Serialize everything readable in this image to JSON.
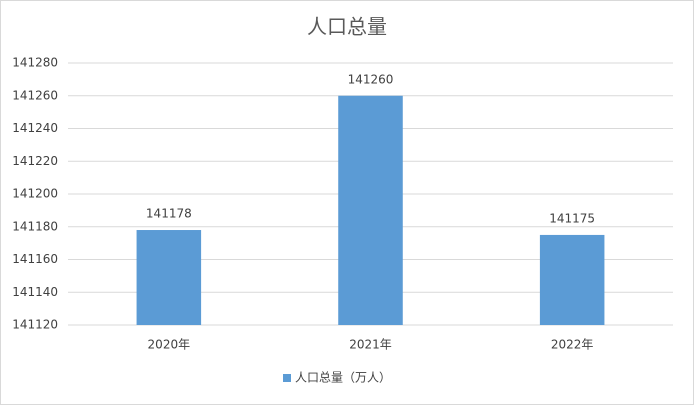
{
  "chart_data": {
    "type": "bar",
    "title": "人口总量",
    "categories": [
      "2020年",
      "2021年",
      "2022年"
    ],
    "series": [
      {
        "name": "人口总量（万人）",
        "color": "#5b9bd5",
        "values": [
          141178,
          141260,
          141175
        ]
      }
    ],
    "ylim": [
      141120,
      141280
    ],
    "yticks": [
      141120,
      141140,
      141160,
      141180,
      141200,
      141220,
      141240,
      141260,
      141280
    ],
    "grid": true,
    "legend": "bottom"
  }
}
